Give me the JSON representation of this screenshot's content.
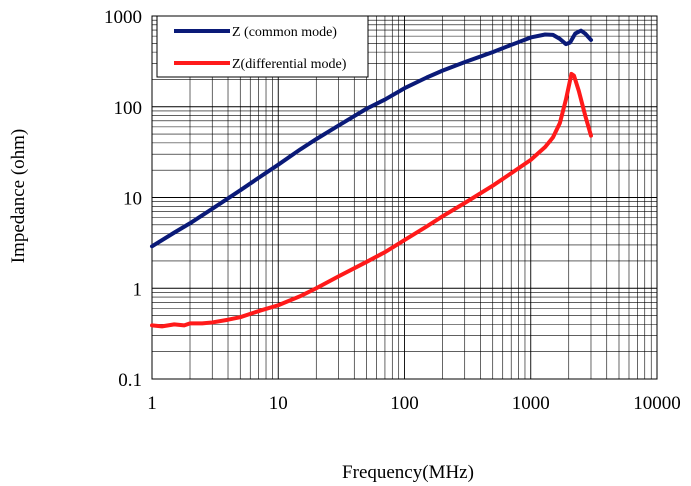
{
  "chart_data": {
    "type": "line",
    "title": "",
    "xlabel": "Frequency(MHz)",
    "ylabel": "Impedance (ohm)",
    "xscale": "log",
    "yscale": "log",
    "xlim": [
      1,
      10000
    ],
    "ylim": [
      0.1,
      1000
    ],
    "x_ticks": [
      "1",
      "10",
      "100",
      "1000",
      "10000"
    ],
    "y_ticks": [
      "0.1",
      "1",
      "10",
      "100",
      "1000"
    ],
    "grid": true,
    "legend_position": "top-left",
    "series": [
      {
        "name": "Z (common mode)",
        "color": "#0a1a78",
        "points": [
          [
            1,
            2.9
          ],
          [
            1.5,
            4.1
          ],
          [
            2,
            5.2
          ],
          [
            3,
            7.5
          ],
          [
            5,
            12
          ],
          [
            7,
            16.5
          ],
          [
            10,
            23
          ],
          [
            15,
            34
          ],
          [
            20,
            44
          ],
          [
            30,
            62
          ],
          [
            50,
            95
          ],
          [
            70,
            120
          ],
          [
            100,
            160
          ],
          [
            150,
            210
          ],
          [
            200,
            250
          ],
          [
            300,
            310
          ],
          [
            500,
            400
          ],
          [
            700,
            480
          ],
          [
            1000,
            580
          ],
          [
            1300,
            625
          ],
          [
            1500,
            620
          ],
          [
            1700,
            560
          ],
          [
            1900,
            490
          ],
          [
            2050,
            510
          ],
          [
            2250,
            640
          ],
          [
            2500,
            690
          ],
          [
            2700,
            640
          ],
          [
            3000,
            545
          ]
        ]
      },
      {
        "name": "Z(differential mode)",
        "color": "#ff1a1a",
        "points": [
          [
            1,
            0.39
          ],
          [
            1.2,
            0.38
          ],
          [
            1.5,
            0.4
          ],
          [
            1.8,
            0.39
          ],
          [
            2,
            0.41
          ],
          [
            2.5,
            0.41
          ],
          [
            3,
            0.42
          ],
          [
            4,
            0.45
          ],
          [
            5,
            0.48
          ],
          [
            7,
            0.56
          ],
          [
            10,
            0.65
          ],
          [
            15,
            0.82
          ],
          [
            20,
            1.0
          ],
          [
            30,
            1.35
          ],
          [
            50,
            1.95
          ],
          [
            70,
            2.5
          ],
          [
            100,
            3.4
          ],
          [
            150,
            4.8
          ],
          [
            200,
            6.2
          ],
          [
            300,
            8.7
          ],
          [
            500,
            13.5
          ],
          [
            700,
            18.5
          ],
          [
            1000,
            26
          ],
          [
            1300,
            36
          ],
          [
            1500,
            46
          ],
          [
            1700,
            66
          ],
          [
            1900,
            120
          ],
          [
            2100,
            230
          ],
          [
            2200,
            220
          ],
          [
            2400,
            150
          ],
          [
            2700,
            80
          ],
          [
            3000,
            48
          ]
        ]
      }
    ]
  }
}
